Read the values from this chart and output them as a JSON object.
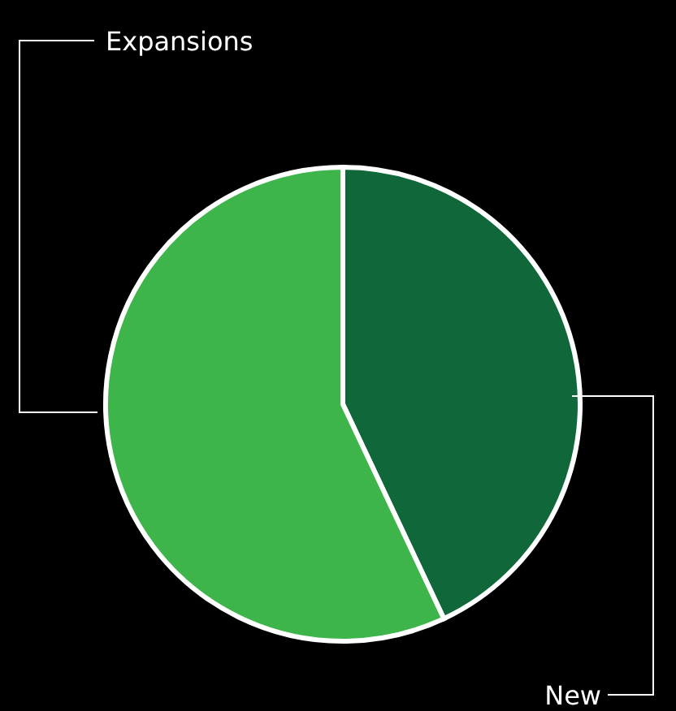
{
  "chart_data": {
    "type": "pie",
    "categories": [
      "New",
      "Expansions"
    ],
    "values": [
      43,
      57
    ],
    "colors": [
      "#10673a",
      "#3db54a"
    ]
  }
}
